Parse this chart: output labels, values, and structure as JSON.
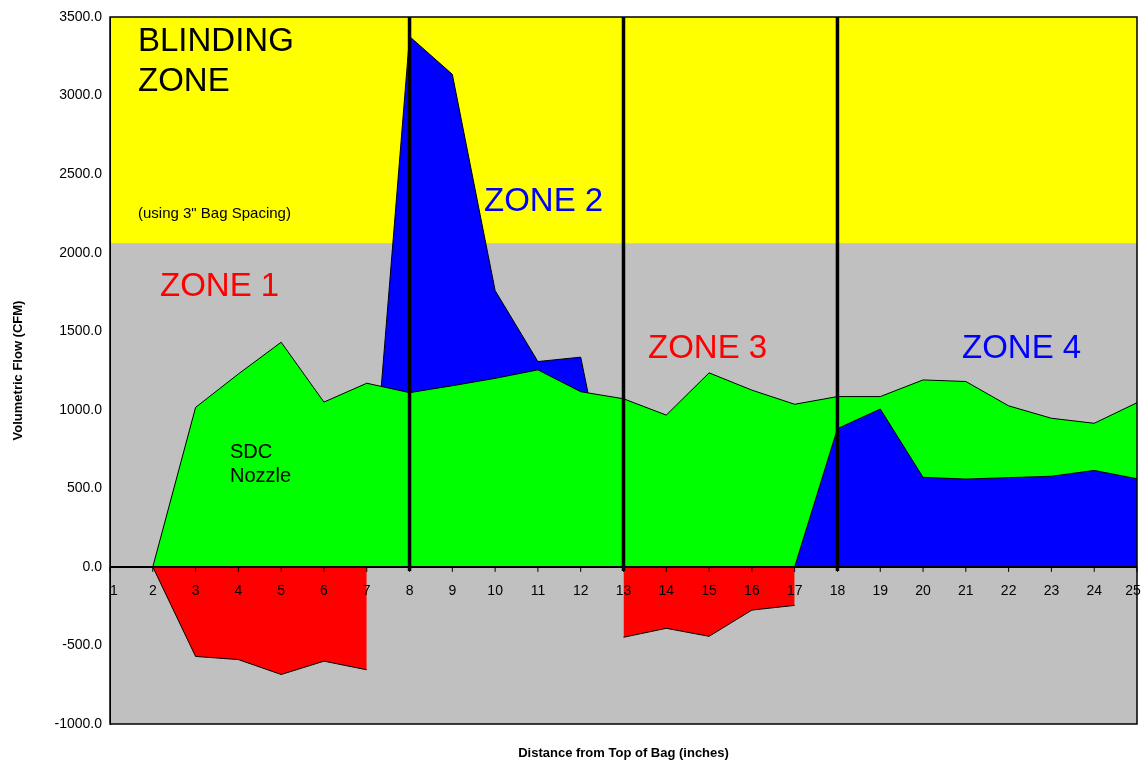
{
  "chart_data": {
    "type": "area",
    "xlabel": "Distance from Top of Bag (inches)",
    "ylabel": "Volumetric Flow (CFM)",
    "x": [
      1,
      2,
      3,
      4,
      5,
      6,
      7,
      8,
      9,
      10,
      11,
      12,
      13,
      14,
      15,
      16,
      17,
      18,
      19,
      20,
      21,
      22,
      23,
      24,
      25
    ],
    "xlim": [
      1,
      25
    ],
    "xticks": [
      1,
      2,
      3,
      4,
      5,
      6,
      7,
      8,
      9,
      10,
      11,
      12,
      13,
      14,
      15,
      16,
      17,
      18,
      19,
      20,
      21,
      22,
      23,
      24,
      25
    ],
    "ylim": [
      -1000,
      3500
    ],
    "yticks": [
      {
        "value": -1000,
        "label": "-1000.0"
      },
      {
        "value": -500,
        "label": "-500.0"
      },
      {
        "value": 0,
        "label": "0.0"
      },
      {
        "value": 500,
        "label": "500.0"
      },
      {
        "value": 1000,
        "label": "1000.0"
      },
      {
        "value": 1500,
        "label": "1500.0"
      },
      {
        "value": 2000,
        "label": "2000.0"
      },
      {
        "value": 2500,
        "label": "2500.0"
      },
      {
        "value": 3000,
        "label": "3000.0"
      },
      {
        "value": 3500,
        "label": "3500.0"
      }
    ],
    "series": [
      {
        "color": "#ff0000",
        "values": [
          null,
          0,
          -570,
          -590,
          -685,
          -600,
          -655,
          null,
          null,
          null,
          null,
          null,
          -448,
          -391,
          -442,
          -275,
          -245,
          null,
          null,
          null,
          null,
          null,
          null,
          null,
          null
        ]
      },
      {
        "color": "#0000ff",
        "values": [
          null,
          null,
          null,
          null,
          null,
          null,
          0,
          3376,
          3135,
          1759,
          1307,
          1335,
          0,
          null,
          null,
          null,
          null,
          null,
          null,
          null,
          null,
          null,
          null,
          null,
          null
        ]
      },
      {
        "color": "#00ff00",
        "values": [
          0,
          0,
          1015,
          1228,
          1430,
          1049,
          1169,
          1109,
          1153,
          1200,
          1254,
          1115,
          1070,
          966,
          1235,
          1125,
          1035,
          1084,
          1084,
          1190,
          1180,
          1025,
          946,
          914,
          1045
        ]
      },
      {
        "color": "#0000ff",
        "values": [
          null,
          null,
          null,
          null,
          null,
          null,
          null,
          null,
          null,
          null,
          null,
          null,
          null,
          null,
          null,
          null,
          0,
          880,
          1005,
          570,
          559,
          568,
          577,
          614,
          561
        ]
      }
    ],
    "bands": [
      {
        "axis": "y",
        "from": 2060,
        "to": 3500,
        "color": "#ffff00"
      }
    ],
    "ref_lines": [
      {
        "axis": "x",
        "value": 8,
        "color": "#000000"
      },
      {
        "axis": "x",
        "value": 13,
        "color": "#000000"
      },
      {
        "axis": "x",
        "value": 18,
        "color": "#000000"
      }
    ],
    "annotations": [
      "BLINDING\nZONE",
      "(using 3\" Bag Spacing)",
      "ZONE 1",
      "ZONE 2",
      "ZONE 3",
      "ZONE 4",
      "SDC\nNozzle"
    ],
    "marker": "none",
    "grid": false,
    "legend": false
  }
}
